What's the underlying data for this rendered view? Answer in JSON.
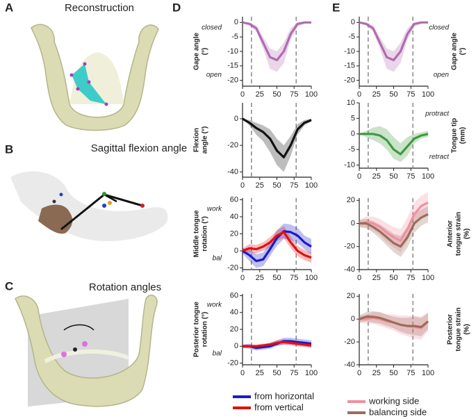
{
  "panels": {
    "labels": [
      "A",
      "B",
      "C",
      "D",
      "E"
    ],
    "titles": [
      "Reconstruction",
      "Sagittal flexion angle",
      "Rotation angles"
    ]
  },
  "chart_data": [
    {
      "type": "line",
      "y_label": [
        "Gape angle",
        "(°)"
      ],
      "annotations": [
        "closed",
        "open"
      ],
      "x": [
        0,
        10,
        20,
        30,
        40,
        50,
        60,
        70,
        80,
        90,
        100
      ],
      "xlim": [
        0,
        100
      ],
      "xticks": [
        0,
        25,
        50,
        75,
        100
      ],
      "ylim": [
        -22,
        2
      ],
      "yticks": [
        0,
        -5,
        -10,
        -15,
        -20
      ],
      "vlines": [
        13,
        78
      ],
      "series": [
        {
          "color": "#b06cb0",
          "values": [
            0,
            -0.5,
            -2,
            -7,
            -12,
            -13,
            -10,
            -4,
            -0.5,
            0,
            0
          ],
          "lower": [
            0,
            -1,
            -3,
            -9,
            -16,
            -17,
            -14,
            -6,
            -1.5,
            -0.5,
            0
          ],
          "upper": [
            0,
            0,
            -1,
            -5,
            -9,
            -10,
            -7,
            -2,
            0,
            0,
            0
          ]
        }
      ]
    },
    {
      "type": "line",
      "y_label": [
        "Flexion",
        "angle (°)"
      ],
      "annotations": [],
      "x": [
        0,
        10,
        20,
        30,
        40,
        50,
        60,
        70,
        80,
        90,
        100
      ],
      "xlim": [
        0,
        100
      ],
      "xticks": [
        0,
        25,
        50,
        75,
        100
      ],
      "ylim": [
        -44,
        12
      ],
      "yticks": [
        0,
        -20,
        -40
      ],
      "vlines": [
        13,
        78
      ],
      "series": [
        {
          "color": "#111111",
          "values": [
            0,
            -3,
            -7,
            -10,
            -15,
            -24,
            -29,
            -20,
            -8,
            -3,
            -1
          ],
          "lower": [
            0,
            -5,
            -12,
            -17,
            -25,
            -35,
            -40,
            -28,
            -12,
            -5,
            -2
          ],
          "upper": [
            0,
            -1,
            -3,
            -5,
            -8,
            -15,
            -20,
            -13,
            -4,
            -1,
            0
          ]
        }
      ]
    },
    {
      "type": "line",
      "y_label": [
        "Middle tongue",
        "rotation (°)"
      ],
      "annotations": [
        "work",
        "bal"
      ],
      "x": [
        0,
        10,
        20,
        30,
        40,
        50,
        60,
        70,
        80,
        90,
        100
      ],
      "xlim": [
        0,
        100
      ],
      "xticks": [
        0,
        25,
        50,
        75,
        100
      ],
      "ylim": [
        -22,
        62
      ],
      "yticks": [
        60,
        40,
        20,
        0,
        -20
      ],
      "vlines": [
        13,
        78
      ],
      "series": [
        {
          "color": "#1a1acc",
          "values": [
            0,
            -5,
            -12,
            -10,
            2,
            15,
            23,
            22,
            18,
            10,
            5
          ],
          "lower": [
            -3,
            -12,
            -20,
            -18,
            -6,
            6,
            14,
            13,
            9,
            2,
            -4
          ],
          "upper": [
            3,
            2,
            -4,
            -2,
            10,
            24,
            32,
            31,
            27,
            18,
            14
          ]
        },
        {
          "color": "#e01010",
          "values": [
            0,
            3,
            2,
            5,
            10,
            18,
            22,
            10,
            0,
            -5,
            -8
          ],
          "lower": [
            -3,
            -2,
            -3,
            0,
            4,
            12,
            15,
            3,
            -6,
            -11,
            -14
          ],
          "upper": [
            3,
            8,
            7,
            10,
            16,
            24,
            29,
            17,
            6,
            1,
            -2
          ]
        }
      ]
    },
    {
      "type": "line",
      "y_label": [
        "Posterior tongue",
        "rotation (°)"
      ],
      "annotations": [
        "work",
        "bal"
      ],
      "x": [
        0,
        10,
        20,
        30,
        40,
        50,
        60,
        70,
        80,
        90,
        100
      ],
      "xlim": [
        0,
        100
      ],
      "xticks": [
        0,
        25,
        50,
        75,
        100
      ],
      "ylim": [
        -22,
        62
      ],
      "yticks": [
        60,
        40,
        20,
        0,
        -20
      ],
      "vlines": [
        13,
        78
      ],
      "series": [
        {
          "name": "from horizontal",
          "color": "#1a1acc",
          "values": [
            0,
            0,
            -2,
            -1,
            0,
            3,
            6,
            6,
            5,
            4,
            3
          ],
          "lower": [
            -2,
            -3,
            -5,
            -4,
            -3,
            0,
            2,
            2,
            1,
            0,
            -1
          ],
          "upper": [
            2,
            3,
            1,
            2,
            4,
            7,
            10,
            10,
            9,
            8,
            7
          ]
        },
        {
          "name": "from vertical",
          "color": "#e01010",
          "values": [
            0,
            0,
            0,
            1,
            2,
            4,
            5,
            4,
            3,
            2,
            1
          ],
          "lower": [
            -2,
            -2,
            -2,
            -1,
            0,
            1,
            2,
            1,
            0,
            -1,
            -2
          ],
          "upper": [
            2,
            2,
            2,
            3,
            4,
            7,
            8,
            7,
            6,
            5,
            4
          ]
        }
      ]
    },
    {
      "type": "line",
      "y_label": [
        "Gape angle",
        "(°)"
      ],
      "annotations": [
        "closed",
        "open"
      ],
      "x": [
        0,
        10,
        20,
        30,
        40,
        50,
        60,
        70,
        80,
        90,
        100
      ],
      "xlim": [
        0,
        100
      ],
      "xticks": [
        0,
        25,
        50,
        75,
        100
      ],
      "ylim": [
        -22,
        2
      ],
      "yticks": [
        0,
        -5,
        -10,
        -15,
        -20
      ],
      "vlines": [
        13,
        78
      ],
      "series": [
        {
          "color": "#b06cb0",
          "values": [
            0,
            -0.5,
            -2,
            -7,
            -12,
            -13,
            -10,
            -4,
            -0.5,
            0,
            0
          ],
          "lower": [
            0,
            -1,
            -3,
            -9,
            -16,
            -17,
            -14,
            -6,
            -1.5,
            -0.5,
            0
          ],
          "upper": [
            0,
            0,
            -1,
            -5,
            -9,
            -10,
            -7,
            -2,
            0,
            0,
            0
          ]
        }
      ]
    },
    {
      "type": "line",
      "y_label": [
        "Tongue tip",
        "(mm)"
      ],
      "annotations": [
        "protract",
        "retract"
      ],
      "x": [
        0,
        10,
        20,
        30,
        40,
        50,
        60,
        70,
        80,
        90,
        100
      ],
      "xlim": [
        0,
        100
      ],
      "xticks": [
        0,
        25,
        50,
        75,
        100
      ],
      "ylim": [
        -11,
        10
      ],
      "yticks": [
        10,
        5,
        0,
        -5,
        -10
      ],
      "vlines": [
        13,
        78
      ],
      "series": [
        {
          "color": "#3f9a3f",
          "values": [
            0,
            0,
            0,
            -0.5,
            -2,
            -5,
            -6.5,
            -4,
            -1.5,
            -0.5,
            0
          ],
          "lower": [
            0,
            -1,
            -2,
            -3,
            -5,
            -8,
            -9,
            -7,
            -3,
            -1.5,
            -1
          ],
          "upper": [
            0,
            1,
            2,
            2.5,
            1.5,
            -1,
            -3,
            -1,
            0,
            0.5,
            1
          ]
        }
      ]
    },
    {
      "type": "line",
      "y_label": [
        "Anterior",
        "tongue strain",
        "(%)"
      ],
      "annotations": [],
      "x": [
        0,
        10,
        20,
        30,
        40,
        50,
        60,
        70,
        80,
        90,
        100
      ],
      "xlim": [
        0,
        100
      ],
      "xticks": [
        0,
        25,
        50,
        75,
        100
      ],
      "ylim": [
        -40,
        22
      ],
      "yticks": [
        20,
        0,
        -20,
        -40
      ],
      "vlines": [
        13,
        78
      ],
      "series": [
        {
          "color": "#f090a0",
          "values": [
            0,
            1,
            0,
            -3,
            -8,
            -12,
            -15,
            -5,
            8,
            15,
            18
          ],
          "lower": [
            -3,
            -4,
            -6,
            -10,
            -16,
            -21,
            -25,
            -15,
            -2,
            6,
            9
          ],
          "upper": [
            3,
            6,
            6,
            4,
            0,
            -3,
            -5,
            5,
            18,
            24,
            27
          ]
        },
        {
          "color": "#9c6c5a",
          "values": [
            0,
            0,
            -3,
            -7,
            -12,
            -17,
            -20,
            -12,
            0,
            5,
            8
          ],
          "lower": [
            -3,
            -4,
            -8,
            -13,
            -19,
            -25,
            -29,
            -21,
            -8,
            -2,
            1
          ],
          "upper": [
            3,
            4,
            2,
            -1,
            -5,
            -9,
            -11,
            -3,
            8,
            12,
            15
          ]
        }
      ]
    },
    {
      "type": "line",
      "y_label": [
        "Posterior",
        "tongue strain",
        "(%)"
      ],
      "annotations": [],
      "x": [
        0,
        10,
        20,
        30,
        40,
        50,
        60,
        70,
        80,
        90,
        100
      ],
      "xlim": [
        0,
        100
      ],
      "xticks": [
        0,
        25,
        50,
        75,
        100
      ],
      "ylim": [
        -40,
        22
      ],
      "yticks": [
        20,
        0,
        -20,
        -40
      ],
      "vlines": [
        13,
        78
      ],
      "series": [
        {
          "name": "working side",
          "color": "#f090a0",
          "values": [
            0,
            0,
            1,
            0,
            -2,
            -3,
            -5,
            -6,
            -7,
            -8,
            -2
          ],
          "lower": [
            -3,
            -4,
            -4,
            -6,
            -8,
            -10,
            -13,
            -15,
            -17,
            -18,
            -10
          ],
          "upper": [
            3,
            4,
            6,
            6,
            4,
            4,
            3,
            3,
            3,
            2,
            6
          ]
        },
        {
          "name": "balancing side",
          "color": "#9c6c5a",
          "values": [
            0,
            2,
            2,
            1,
            -1,
            -3,
            -5,
            -6,
            -6,
            -7,
            -2
          ],
          "lower": [
            -3,
            -2,
            -3,
            -4,
            -6,
            -8,
            -11,
            -13,
            -14,
            -15,
            -9
          ],
          "upper": [
            3,
            6,
            7,
            6,
            4,
            2,
            1,
            1,
            2,
            1,
            5
          ]
        }
      ]
    }
  ]
}
